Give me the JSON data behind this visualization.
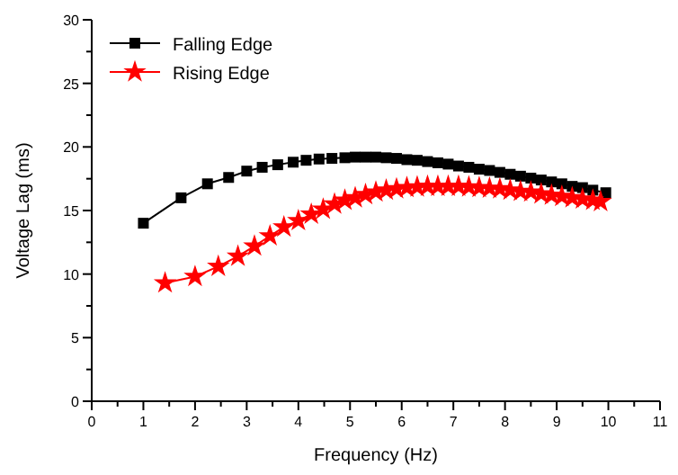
{
  "chart_data": {
    "type": "line",
    "xlabel": "Frequency (Hz)",
    "ylabel": "Voltage Lag (ms)",
    "xlim": [
      0,
      11
    ],
    "ylim": [
      0,
      30
    ],
    "xticks": [
      0,
      {
        "value": 0.5,
        "label": null
      },
      1,
      {
        "value": 1.5,
        "label": null
      },
      2,
      {
        "value": 2.5,
        "label": null
      },
      3,
      {
        "value": 3.5,
        "label": null
      },
      4,
      {
        "value": 4.5,
        "label": null
      },
      5,
      {
        "value": 5.5,
        "label": null
      },
      6,
      {
        "value": 6.5,
        "label": null
      },
      7,
      {
        "value": 7.5,
        "label": null
      },
      8,
      {
        "value": 8.5,
        "label": null
      },
      9,
      {
        "value": 9.5,
        "label": null
      },
      10,
      {
        "value": 10.5,
        "label": null
      },
      11
    ],
    "yticks": [
      0,
      {
        "value": 2.5,
        "label": null
      },
      5,
      {
        "value": 7.5,
        "label": null
      },
      10,
      {
        "value": 12.5,
        "label": null
      },
      15,
      {
        "value": 17.5,
        "label": null
      },
      20,
      {
        "value": 22.5,
        "label": null
      },
      25,
      {
        "value": 27.5,
        "label": null
      },
      30
    ],
    "legend": "top left",
    "grid": false,
    "series": [
      {
        "name": "Falling Edge",
        "color": "#000000",
        "marker": "square",
        "x": [
          1,
          1.73,
          2.24,
          2.65,
          3.0,
          3.3,
          3.6,
          3.9,
          4.15,
          4.4,
          4.65,
          4.9,
          5.1,
          5.3,
          5.5,
          5.7,
          5.9,
          6.1,
          6.3,
          6.5,
          6.7,
          6.9,
          7.1,
          7.3,
          7.5,
          7.7,
          7.9,
          8.1,
          8.3,
          8.5,
          8.7,
          8.9,
          9.1,
          9.3,
          9.5,
          9.7,
          9.95
        ],
        "values": [
          14.0,
          16.0,
          17.1,
          17.6,
          18.1,
          18.4,
          18.6,
          18.8,
          18.95,
          19.05,
          19.1,
          19.15,
          19.2,
          19.2,
          19.2,
          19.15,
          19.1,
          19.0,
          18.95,
          18.85,
          18.75,
          18.65,
          18.5,
          18.4,
          18.25,
          18.15,
          18.0,
          17.85,
          17.7,
          17.55,
          17.4,
          17.25,
          17.1,
          16.9,
          16.8,
          16.6,
          16.4
        ]
      },
      {
        "name": "Rising Edge",
        "color": "#ff0000",
        "marker": "star",
        "x": [
          1.42,
          2.0,
          2.45,
          2.83,
          3.15,
          3.45,
          3.72,
          4.0,
          4.25,
          4.48,
          4.7,
          4.9,
          5.1,
          5.3,
          5.5,
          5.7,
          5.9,
          6.1,
          6.3,
          6.5,
          6.7,
          6.9,
          7.1,
          7.3,
          7.5,
          7.7,
          7.9,
          8.1,
          8.3,
          8.5,
          8.7,
          8.9,
          9.1,
          9.3,
          9.5,
          9.7,
          9.85
        ],
        "values": [
          9.3,
          9.8,
          10.6,
          11.4,
          12.2,
          13.0,
          13.7,
          14.2,
          14.7,
          15.1,
          15.5,
          15.8,
          16.0,
          16.25,
          16.45,
          16.6,
          16.7,
          16.8,
          16.85,
          16.9,
          16.9,
          16.9,
          16.9,
          16.85,
          16.8,
          16.75,
          16.7,
          16.6,
          16.5,
          16.45,
          16.3,
          16.2,
          16.1,
          16.0,
          15.9,
          15.8,
          15.7
        ]
      }
    ]
  }
}
